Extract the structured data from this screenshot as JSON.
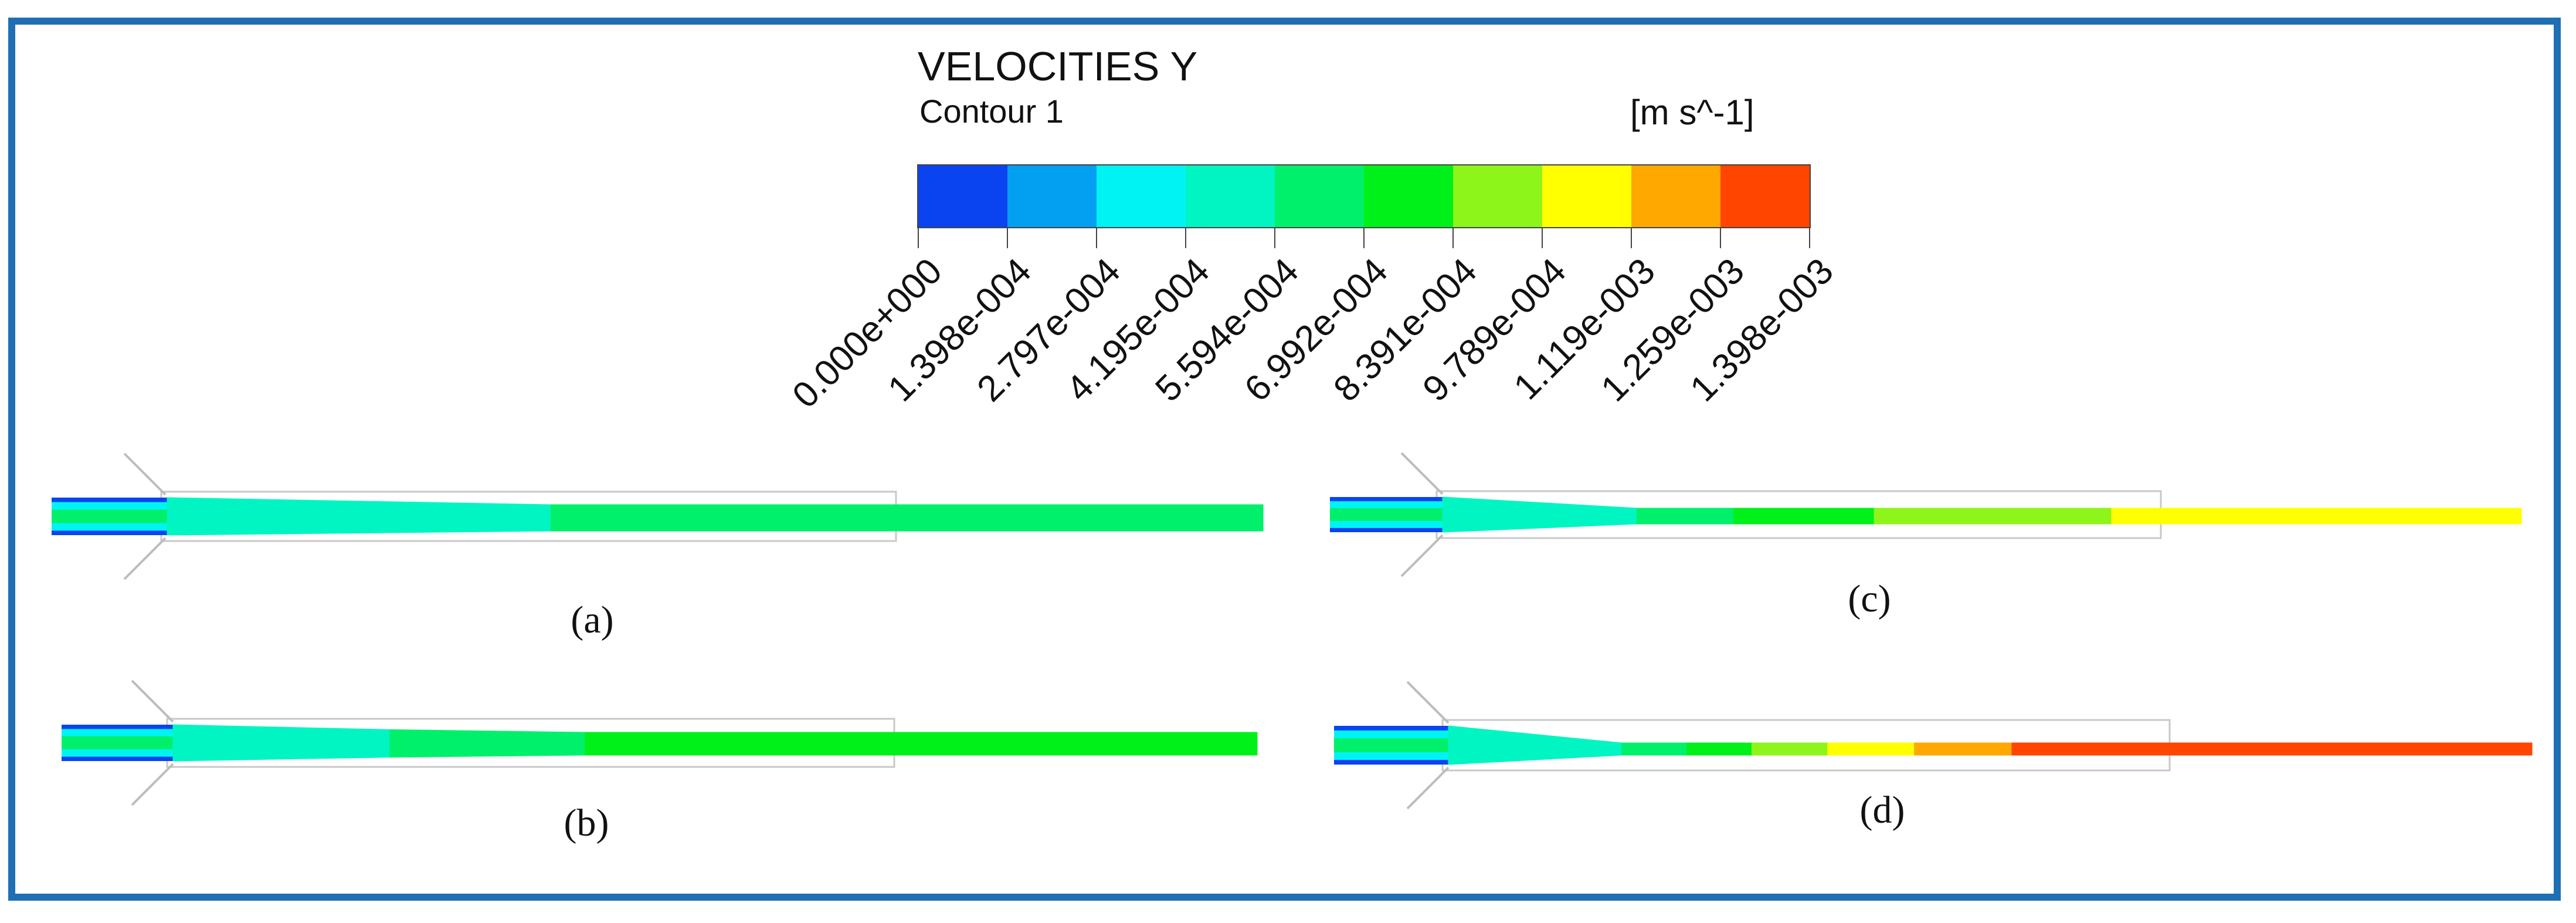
{
  "legend": {
    "title": "VELOCITIES Y",
    "subtitle": "Contour 1",
    "unit": "[m s^-1]",
    "colors": [
      "#0a43f0",
      "#039ff0",
      "#00f3f3",
      "#00f5c2",
      "#00f06b",
      "#00f01a",
      "#8ef51a",
      "#ffff00",
      "#ffa800",
      "#ff4500"
    ],
    "ticks": [
      "0.000e+000",
      "1.398e-004",
      "2.797e-004",
      "4.195e-004",
      "5.594e-004",
      "6.992e-004",
      "8.391e-004",
      "9.789e-004",
      "1.119e-003",
      "1.259e-003",
      "1.398e-003"
    ]
  },
  "panels": [
    {
      "label": "(a)",
      "bands": [
        {
          "color_index": 3,
          "end": 0.35
        },
        {
          "color_index": 4,
          "end": 1.0
        }
      ]
    },
    {
      "label": "(b)",
      "bands": [
        {
          "color_index": 3,
          "end": 0.2
        },
        {
          "color_index": 4,
          "end": 0.38
        },
        {
          "color_index": 5,
          "end": 1.0
        }
      ]
    },
    {
      "label": "(c)",
      "bands": [
        {
          "color_index": 3,
          "end": 0.18
        },
        {
          "color_index": 4,
          "end": 0.27
        },
        {
          "color_index": 5,
          "end": 0.4
        },
        {
          "color_index": 6,
          "end": 0.62
        },
        {
          "color_index": 7,
          "end": 1.0
        }
      ]
    },
    {
      "label": "(d)",
      "bands": [
        {
          "color_index": 3,
          "end": 0.16
        },
        {
          "color_index": 4,
          "end": 0.22
        },
        {
          "color_index": 5,
          "end": 0.28
        },
        {
          "color_index": 6,
          "end": 0.35
        },
        {
          "color_index": 7,
          "end": 0.43
        },
        {
          "color_index": 8,
          "end": 0.52
        },
        {
          "color_index": 9,
          "end": 1.0
        }
      ]
    }
  ]
}
